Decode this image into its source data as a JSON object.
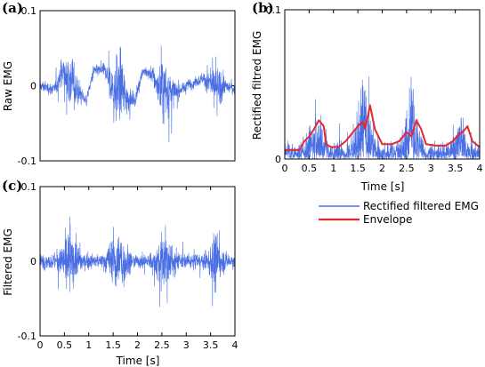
{
  "colors": {
    "emg": "#4a6fe3",
    "envelope": "#e8262d",
    "axis": "#000000"
  },
  "chart_data": [
    {
      "id": "a",
      "panel_label": "(a)",
      "type": "line",
      "title": "",
      "xlabel": "",
      "ylabel": "Raw EMG",
      "xlim": [
        0,
        4
      ],
      "ylim": [
        -0.1,
        0.1
      ],
      "xticks": [],
      "xtick_labels": [],
      "yticks": [
        -0.1,
        0,
        0.1
      ],
      "ytick_labels": [
        "-0.1",
        "0",
        "0.1"
      ],
      "grid": false,
      "series": [
        {
          "kind": "raw",
          "sample_step": 0.01,
          "baseline": [
            [
              0,
              0.0
            ],
            [
              0.3,
              -0.005
            ],
            [
              0.45,
              0.02
            ],
            [
              0.6,
              0.01
            ],
            [
              0.75,
              -0.005
            ],
            [
              0.95,
              -0.02
            ],
            [
              1.1,
              0.02
            ],
            [
              1.35,
              0.02
            ],
            [
              1.5,
              -0.01
            ],
            [
              1.65,
              0.0
            ],
            [
              1.75,
              -0.015
            ],
            [
              1.95,
              -0.02
            ],
            [
              2.1,
              0.02
            ],
            [
              2.3,
              0.015
            ],
            [
              2.45,
              -0.005
            ],
            [
              2.6,
              -0.005
            ],
            [
              2.8,
              -0.01
            ],
            [
              3.0,
              0.0
            ],
            [
              3.35,
              0.01
            ],
            [
              3.6,
              -0.005
            ],
            [
              3.8,
              0.0
            ],
            [
              4.0,
              -0.005
            ]
          ],
          "bursts": [
            {
              "center": 0.6,
              "width": 0.25,
              "amplitude": 0.06
            },
            {
              "center": 1.6,
              "width": 0.25,
              "amplitude": 0.075
            },
            {
              "center": 2.55,
              "width": 0.25,
              "amplitude": 0.065
            },
            {
              "center": 3.6,
              "width": 0.2,
              "amplitude": 0.045
            }
          ],
          "base_noise": 0.008
        }
      ]
    },
    {
      "id": "b",
      "panel_label": "(b)",
      "type": "line",
      "title": "",
      "xlabel": "Time [s]",
      "ylabel": "Rectified filtred EMG",
      "xlim": [
        0,
        4
      ],
      "ylim": [
        0,
        0.1
      ],
      "xticks": [
        0,
        0.5,
        1,
        1.5,
        2,
        2.5,
        3,
        3.5,
        4
      ],
      "xtick_labels": [
        "0",
        "0.5",
        "1",
        "1.5",
        "2",
        "2.5",
        "3",
        "3.5",
        "4"
      ],
      "yticks": [
        0,
        0.1
      ],
      "ytick_labels": [
        "0",
        "0.1"
      ],
      "grid": false,
      "legend_position": "below",
      "series": [
        {
          "kind": "rectified",
          "name": "Rectified filtered EMG",
          "sample_step": 0.01,
          "bursts": [
            {
              "center": 0.65,
              "width": 0.22,
              "amplitude": 0.055
            },
            {
              "center": 1.62,
              "width": 0.22,
              "amplitude": 0.085
            },
            {
              "center": 2.6,
              "width": 0.22,
              "amplitude": 0.06
            },
            {
              "center": 3.6,
              "width": 0.18,
              "amplitude": 0.05
            }
          ],
          "base_noise": 0.012
        },
        {
          "kind": "envelope",
          "name": "Envelope",
          "points": [
            [
              0,
              0.006
            ],
            [
              0.3,
              0.006
            ],
            [
              0.4,
              0.012
            ],
            [
              0.5,
              0.015
            ],
            [
              0.6,
              0.02
            ],
            [
              0.7,
              0.026
            ],
            [
              0.8,
              0.022
            ],
            [
              0.85,
              0.01
            ],
            [
              0.95,
              0.008
            ],
            [
              1.1,
              0.008
            ],
            [
              1.25,
              0.012
            ],
            [
              1.4,
              0.018
            ],
            [
              1.5,
              0.022
            ],
            [
              1.6,
              0.025
            ],
            [
              1.65,
              0.02
            ],
            [
              1.75,
              0.036
            ],
            [
              1.85,
              0.02
            ],
            [
              2.0,
              0.01
            ],
            [
              2.2,
              0.01
            ],
            [
              2.35,
              0.012
            ],
            [
              2.5,
              0.018
            ],
            [
              2.6,
              0.015
            ],
            [
              2.7,
              0.026
            ],
            [
              2.8,
              0.02
            ],
            [
              2.9,
              0.01
            ],
            [
              3.1,
              0.009
            ],
            [
              3.3,
              0.009
            ],
            [
              3.45,
              0.012
            ],
            [
              3.55,
              0.016
            ],
            [
              3.65,
              0.018
            ],
            [
              3.75,
              0.022
            ],
            [
              3.85,
              0.012
            ],
            [
              4.0,
              0.008
            ]
          ]
        }
      ]
    },
    {
      "id": "c",
      "panel_label": "(c)",
      "type": "line",
      "title": "",
      "xlabel": "Time [s]",
      "ylabel": "Filtered EMG",
      "xlim": [
        0,
        4
      ],
      "ylim": [
        -0.1,
        0.1
      ],
      "xticks": [
        0,
        0.5,
        1,
        1.5,
        2,
        2.5,
        3,
        3.5,
        4
      ],
      "xtick_labels": [
        "0",
        "0.5",
        "1",
        "1.5",
        "2",
        "2.5",
        "3",
        "3.5",
        "4"
      ],
      "yticks": [
        -0.1,
        0,
        0.1
      ],
      "ytick_labels": [
        "-0.1",
        "0",
        "0.1"
      ],
      "grid": false,
      "series": [
        {
          "kind": "filtered",
          "sample_step": 0.01,
          "bursts": [
            {
              "center": 0.6,
              "width": 0.25,
              "amplitude": 0.055
            },
            {
              "center": 1.6,
              "width": 0.25,
              "amplitude": 0.075
            },
            {
              "center": 2.55,
              "width": 0.25,
              "amplitude": 0.06
            },
            {
              "center": 3.6,
              "width": 0.2,
              "amplitude": 0.045
            }
          ],
          "base_noise": 0.01
        }
      ]
    }
  ]
}
